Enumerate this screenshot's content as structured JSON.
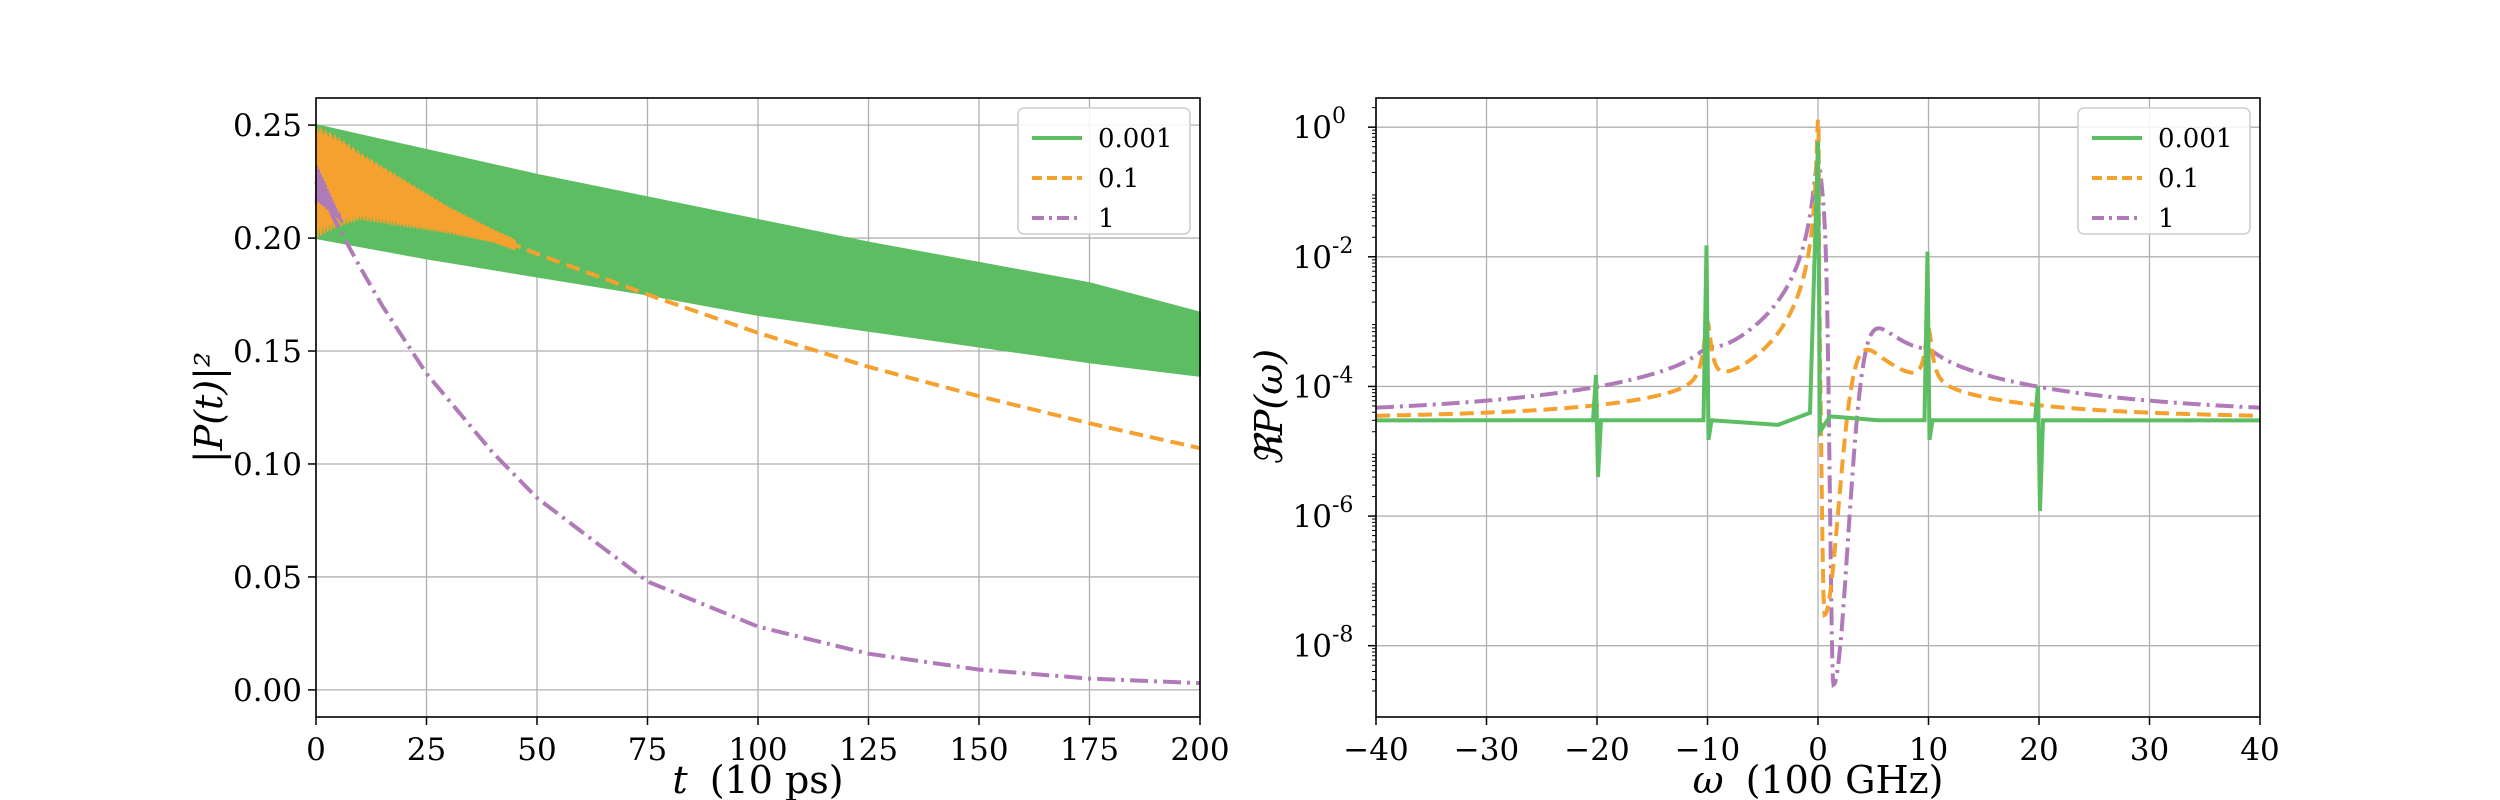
{
  "chart_data": [
    {
      "type": "line",
      "xlabel_var": "t",
      "xlabel_unit": "(10 ps)",
      "ylabel": "|P(t)|²",
      "xlim": [
        0,
        200
      ],
      "ylim": [
        -0.012,
        0.262
      ],
      "xticks": [
        0,
        25,
        50,
        75,
        100,
        125,
        150,
        175,
        200
      ],
      "xtick_labels": [
        "0",
        "25",
        "50",
        "75",
        "100",
        "125",
        "150",
        "175",
        "200"
      ],
      "yticks": [
        0.0,
        0.05,
        0.1,
        0.15,
        0.2,
        0.25
      ],
      "ytick_labels": [
        "0.00",
        "0.05",
        "0.10",
        "0.15",
        "0.20",
        "0.25"
      ],
      "grid": true,
      "legend_position": "top-right",
      "series": [
        {
          "name": "0.001",
          "color": "#5cbd62",
          "style": "solid",
          "fill_band": true,
          "x": [
            0,
            25,
            50,
            75,
            100,
            125,
            150,
            175,
            200
          ],
          "upper": [
            0.25,
            0.239,
            0.228,
            0.218,
            0.208,
            0.198,
            0.189,
            0.18,
            0.167
          ],
          "lower": [
            0.2,
            0.191,
            0.183,
            0.175,
            0.166,
            0.159,
            0.152,
            0.145,
            0.139
          ]
        },
        {
          "name": "0.1",
          "color": "#f5a12f",
          "style": "dashed",
          "x": [
            0,
            5,
            10,
            20,
            30,
            40,
            50,
            75,
            100,
            125,
            150,
            175,
            200
          ],
          "y": [
            0.225,
            0.226,
            0.222,
            0.215,
            0.208,
            0.201,
            0.193,
            0.175,
            0.158,
            0.143,
            0.13,
            0.118,
            0.107
          ],
          "envelope_upper": [
            0.25,
            0.245,
            0.238,
            0.226,
            0.214,
            0.204,
            0.195
          ],
          "envelope_lower": [
            0.2,
            0.205,
            0.208,
            0.205,
            0.202,
            0.198,
            0.191
          ]
        },
        {
          "name": "1",
          "color": "#b07ab8",
          "style": "dashdot",
          "x": [
            0,
            5,
            10,
            15,
            25,
            40,
            50,
            75,
            100,
            125,
            150,
            175,
            200
          ],
          "y": [
            0.225,
            0.205,
            0.187,
            0.17,
            0.14,
            0.105,
            0.085,
            0.048,
            0.028,
            0.016,
            0.009,
            0.005,
            0.003
          ]
        }
      ]
    },
    {
      "type": "line",
      "xlabel_var": "ω",
      "xlabel_unit": "(100 GHz)",
      "ylabel": "ℜP(ω)",
      "xlim": [
        -40,
        40
      ],
      "ylim_log10": [
        -9.1,
        0.45
      ],
      "yscale": "log",
      "xticks": [
        -40,
        -30,
        -20,
        -10,
        0,
        10,
        20,
        30,
        40
      ],
      "xtick_labels": [
        "−40",
        "−30",
        "−20",
        "−10",
        "0",
        "10",
        "20",
        "30",
        "40"
      ],
      "yticks_exp": [
        0,
        -2,
        -4,
        -6,
        -8
      ],
      "ytick_base": "10",
      "ytick_exp_labels": [
        "0",
        "-2",
        "-4",
        "-6",
        "-8"
      ],
      "grid": true,
      "legend_position": "top-right",
      "series": [
        {
          "name": "0.001",
          "color": "#5cbd62",
          "style": "solid",
          "baseline": 3e-05,
          "features": [
            {
              "x": -20,
              "up": 0.00015,
              "down": 4e-06
            },
            {
              "x": -10,
              "up": 0.015,
              "down": 1.5e-05
            },
            {
              "x": 0,
              "up": 0.6,
              "down": 2e-05
            },
            {
              "x": 10,
              "up": 0.012,
              "down": 1.5e-05
            },
            {
              "x": 20,
              "up": 0.0001,
              "down": 1.2e-06
            }
          ]
        },
        {
          "name": "0.1",
          "color": "#f5a12f",
          "style": "dashed",
          "baseline": 3e-05,
          "peaks": [
            {
              "x": -10,
              "peak": 0.0009,
              "width": 0.25
            },
            {
              "x": 0,
              "peak": 1.3,
              "width": 0.08
            },
            {
              "x": 10,
              "peak": 0.0007,
              "width": 0.25
            }
          ],
          "dip": {
            "x": 0.6,
            "min": 3e-08
          }
        },
        {
          "name": "1",
          "color": "#b07ab8",
          "style": "dashdot",
          "baseline": 3e-05,
          "peaks": [
            {
              "x": -10,
              "peak": 0.00012,
              "width": 1.2
            },
            {
              "x": 0,
              "peak": 0.3,
              "width": 0.3
            },
            {
              "x": 10,
              "peak": 0.0001,
              "width": 1.2
            }
          ],
          "dip": {
            "x": 1.4,
            "min": 2.5e-09
          }
        }
      ]
    }
  ]
}
